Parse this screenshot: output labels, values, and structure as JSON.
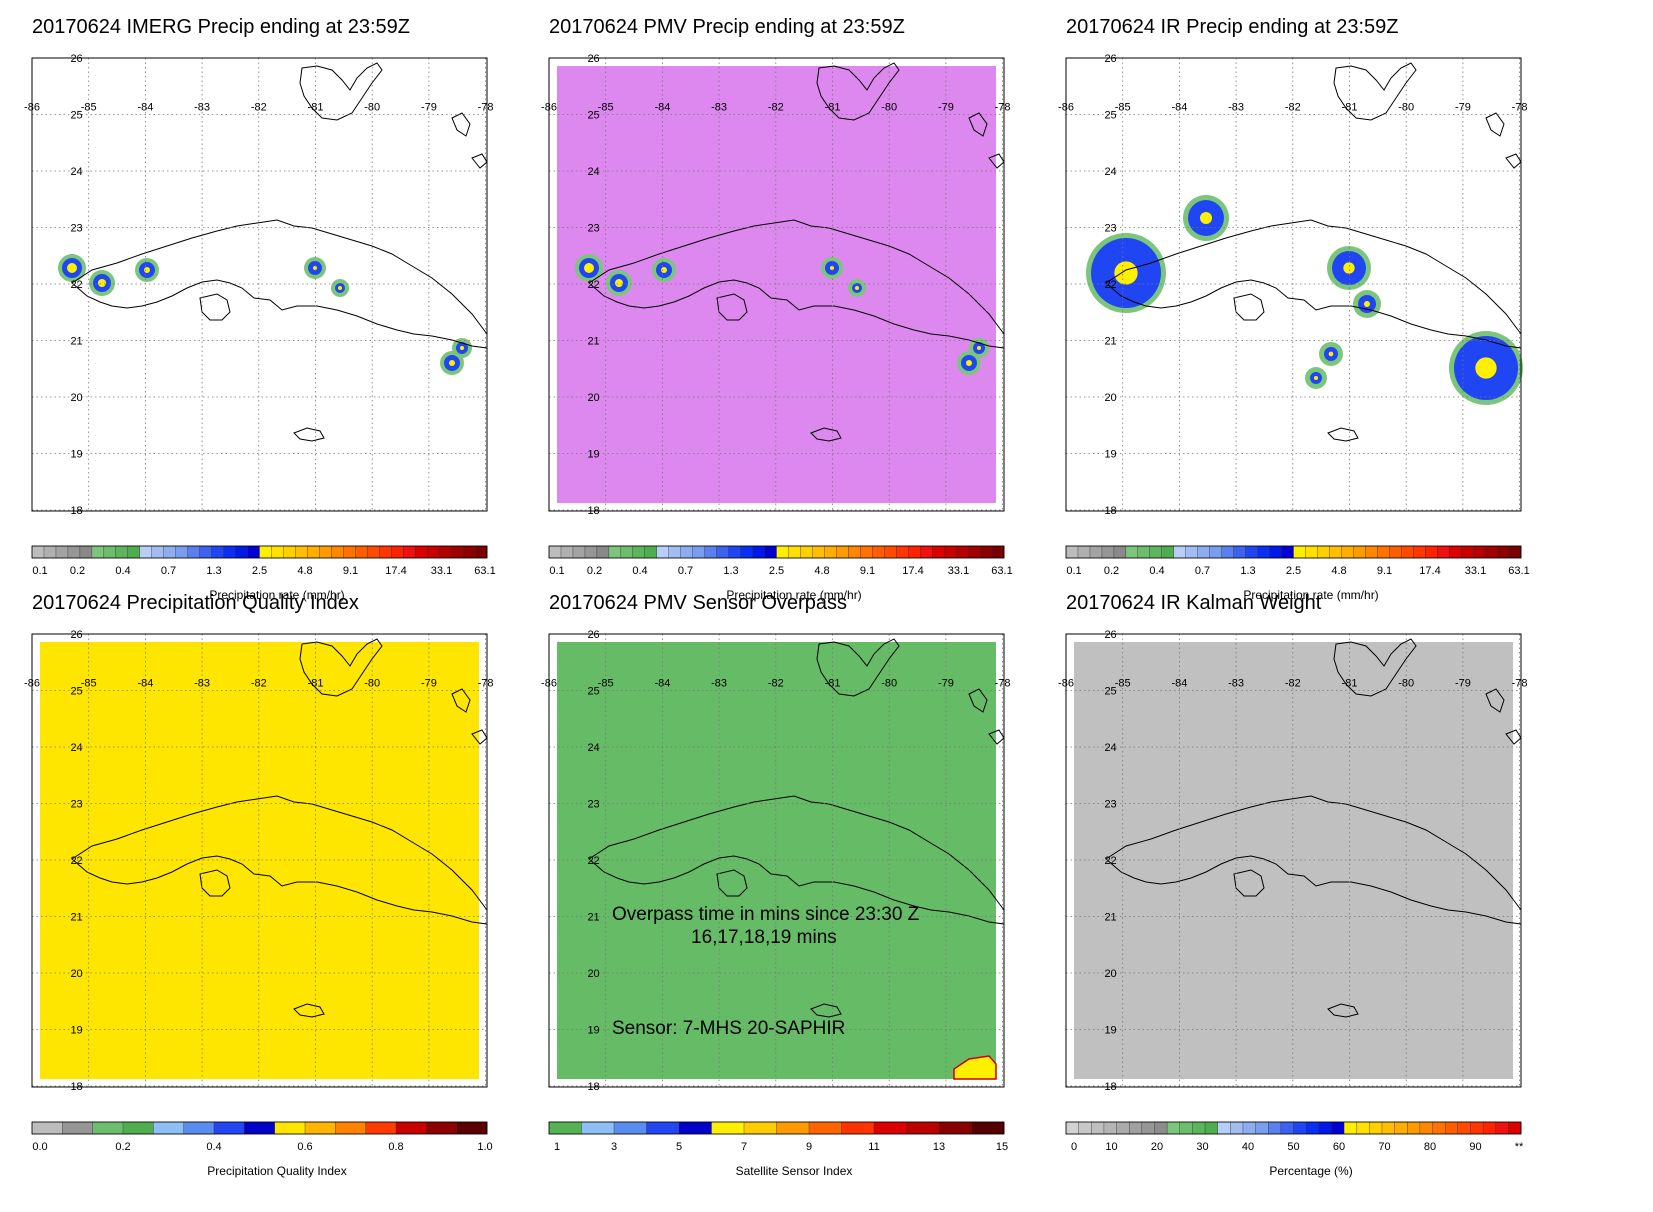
{
  "lon_labels": [
    "-86",
    "-85",
    "-84",
    "-83",
    "-82",
    "-81",
    "-80",
    "-79",
    "-78"
  ],
  "lat_labels": [
    "26",
    "25",
    "24",
    "23",
    "22",
    "21",
    "20",
    "19",
    "18"
  ],
  "panels": [
    {
      "title": "20170624 IMERG Precip ending at 23:59Z",
      "background_fill": null,
      "colorbar": {
        "title": "Precipitation rate (mm/hr)",
        "colors": [
          "#bdbdbd",
          "#b0b0b0",
          "#a3a3a3",
          "#969696",
          "#898989",
          "#7bc67b",
          "#6cbe6c",
          "#5db55d",
          "#4fad4f",
          "#b8cdf7",
          "#a3bdf3",
          "#8eadf0",
          "#799def",
          "#5a7ff0",
          "#3d62f2",
          "#2046f3",
          "#0a2ef4",
          "#0018e8",
          "#0000d2",
          "#fff000",
          "#ffe000",
          "#ffd000",
          "#ffbf00",
          "#ffae00",
          "#ff9a00",
          "#ff8600",
          "#ff7200",
          "#ff5e00",
          "#ff4a00",
          "#ff3600",
          "#ff2200",
          "#f01010",
          "#dc0000",
          "#c80000",
          "#b40000",
          "#a00000",
          "#8c0000",
          "#780000"
        ],
        "labels": [
          "0.1",
          "0.2",
          "0.4",
          "0.7",
          "1.3",
          "2.5",
          "4.8",
          "9.1",
          "17.4",
          "33.1",
          "63.1"
        ]
      }
    },
    {
      "title": "20170624 PMV Precip ending at 23:59Z",
      "background_fill": "#dd88ee",
      "colorbar": {
        "title": "Precipitation rate (mm/hr)",
        "colors": [
          "#bdbdbd",
          "#b0b0b0",
          "#a3a3a3",
          "#969696",
          "#898989",
          "#7bc67b",
          "#6cbe6c",
          "#5db55d",
          "#4fad4f",
          "#b8cdf7",
          "#a3bdf3",
          "#8eadf0",
          "#799def",
          "#5a7ff0",
          "#3d62f2",
          "#2046f3",
          "#0a2ef4",
          "#0018e8",
          "#0000d2",
          "#fff000",
          "#ffe000",
          "#ffd000",
          "#ffbf00",
          "#ffae00",
          "#ff9a00",
          "#ff8600",
          "#ff7200",
          "#ff5e00",
          "#ff4a00",
          "#ff3600",
          "#ff2200",
          "#f01010",
          "#dc0000",
          "#c80000",
          "#b40000",
          "#a00000",
          "#8c0000",
          "#780000"
        ],
        "labels": [
          "0.1",
          "0.2",
          "0.4",
          "0.7",
          "1.3",
          "2.5",
          "4.8",
          "9.1",
          "17.4",
          "33.1",
          "63.1"
        ]
      }
    },
    {
      "title": "20170624 IR Precip ending at 23:59Z",
      "background_fill": null,
      "colorbar": {
        "title": "Precipitation rate (mm/hr)",
        "colors": [
          "#bdbdbd",
          "#b0b0b0",
          "#a3a3a3",
          "#969696",
          "#898989",
          "#7bc67b",
          "#6cbe6c",
          "#5db55d",
          "#4fad4f",
          "#b8cdf7",
          "#a3bdf3",
          "#8eadf0",
          "#799def",
          "#5a7ff0",
          "#3d62f2",
          "#2046f3",
          "#0a2ef4",
          "#0018e8",
          "#0000d2",
          "#fff000",
          "#ffe000",
          "#ffd000",
          "#ffbf00",
          "#ffae00",
          "#ff9a00",
          "#ff8600",
          "#ff7200",
          "#ff5e00",
          "#ff4a00",
          "#ff3600",
          "#ff2200",
          "#f01010",
          "#dc0000",
          "#c80000",
          "#b40000",
          "#a00000",
          "#8c0000",
          "#780000"
        ],
        "labels": [
          "0.1",
          "0.2",
          "0.4",
          "0.7",
          "1.3",
          "2.5",
          "4.8",
          "9.1",
          "17.4",
          "33.1",
          "63.1"
        ]
      }
    },
    {
      "title": "20170624 Precipitation Quality Index",
      "background_fill": "#ffe600",
      "colorbar": {
        "title": "Precipitation Quality Index",
        "colors": [
          "#bdbdbd",
          "#969696",
          "#6cbe6c",
          "#4fad4f",
          "#8ec0f5",
          "#5a8df0",
          "#2446f0",
          "#0000c8",
          "#ffe600",
          "#ffb400",
          "#ff8200",
          "#ff3c00",
          "#c80000",
          "#8c0000",
          "#5a0000"
        ],
        "labels": [
          "0.0",
          "0.2",
          "0.4",
          "0.6",
          "0.8",
          "1.0"
        ]
      }
    },
    {
      "title": "20170624 PMV Sensor Overpass",
      "background_fill": "#66bb66",
      "overlay_lines": [
        "Overpass time in mins since 23:30 Z",
        "16,17,18,19 mins",
        "Sensor:   7-MHS 20-SAPHIR"
      ],
      "colorbar": {
        "title": "Satellite Sensor Index",
        "colors": [
          "#55b255",
          "#8ec0f5",
          "#5a8df0",
          "#2446f0",
          "#0000c8",
          "#fff000",
          "#ffcc00",
          "#ff9900",
          "#ff6600",
          "#ff3300",
          "#dd0000",
          "#bb0000",
          "#880000",
          "#550000"
        ],
        "labels": [
          "1",
          "3",
          "5",
          "7",
          "9",
          "11",
          "13",
          "15"
        ]
      }
    },
    {
      "title": "20170624 IR Kalman Weight",
      "background_fill": "#c0c0c0",
      "colorbar": {
        "title": "Percentage (%)",
        "colors": [
          "#d2d2d2",
          "#c8c8c8",
          "#bebebe",
          "#b4b4b4",
          "#aaaaaa",
          "#a0a0a0",
          "#969696",
          "#8c8c8c",
          "#7bc67b",
          "#6cbe6c",
          "#5db55d",
          "#4fad4f",
          "#b8cdf7",
          "#a3bdf3",
          "#8eadf0",
          "#799def",
          "#5a7ff0",
          "#3d62f2",
          "#2046f3",
          "#0a2ef4",
          "#0018e8",
          "#0000d2",
          "#fff000",
          "#ffe000",
          "#ffd000",
          "#ffbf00",
          "#ffae00",
          "#ff9a00",
          "#ff8600",
          "#ff7200",
          "#ff5e00",
          "#ff4a00",
          "#ff3600",
          "#ff2200",
          "#f01010",
          "#dc0000"
        ],
        "labels": [
          "0",
          "10",
          "20",
          "30",
          "40",
          "50",
          "60",
          "70",
          "80",
          "90",
          "**"
        ]
      }
    }
  ]
}
